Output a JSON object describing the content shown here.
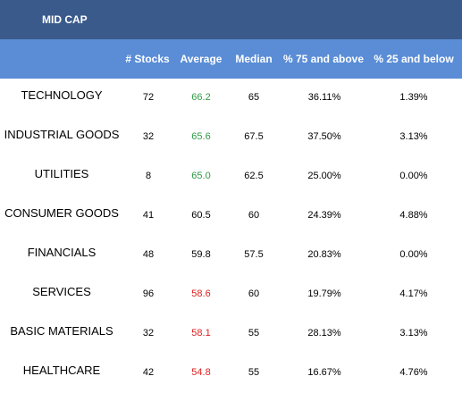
{
  "table": {
    "title": "MID CAP",
    "headers": [
      "# Stocks",
      "Average",
      "Median",
      "% 75 and above",
      "% 25 and below"
    ],
    "rows": [
      {
        "sector": "TECHNOLOGY",
        "stocks": "72",
        "average": "66.2",
        "avg_status": "good",
        "median": "65",
        "above75": "36.11%",
        "below25": "1.39%"
      },
      {
        "sector": "INDUSTRIAL GOODS",
        "stocks": "32",
        "average": "65.6",
        "avg_status": "good",
        "median": "67.5",
        "above75": "37.50%",
        "below25": "3.13%"
      },
      {
        "sector": "UTILITIES",
        "stocks": "8",
        "average": "65.0",
        "avg_status": "good",
        "median": "62.5",
        "above75": "25.00%",
        "below25": "0.00%"
      },
      {
        "sector": "CONSUMER GOODS",
        "stocks": "41",
        "average": "60.5",
        "avg_status": "neutral",
        "median": "60",
        "above75": "24.39%",
        "below25": "4.88%"
      },
      {
        "sector": "FINANCIALS",
        "stocks": "48",
        "average": "59.8",
        "avg_status": "neutral",
        "median": "57.5",
        "above75": "20.83%",
        "below25": "0.00%"
      },
      {
        "sector": "SERVICES",
        "stocks": "96",
        "average": "58.6",
        "avg_status": "bad",
        "median": "60",
        "above75": "19.79%",
        "below25": "4.17%"
      },
      {
        "sector": "BASIC MATERIALS",
        "stocks": "32",
        "average": "58.1",
        "avg_status": "bad",
        "median": "55",
        "above75": "28.13%",
        "below25": "3.13%"
      },
      {
        "sector": "HEALTHCARE",
        "stocks": "42",
        "average": "54.8",
        "avg_status": "bad",
        "median": "55",
        "above75": "16.67%",
        "below25": "4.76%"
      }
    ]
  },
  "colors": {
    "title_bg": "#3b5a8c",
    "header_bg": "#5a8dd6",
    "good": "#2e9a46",
    "bad": "#e02020",
    "neutral": "#000000"
  }
}
